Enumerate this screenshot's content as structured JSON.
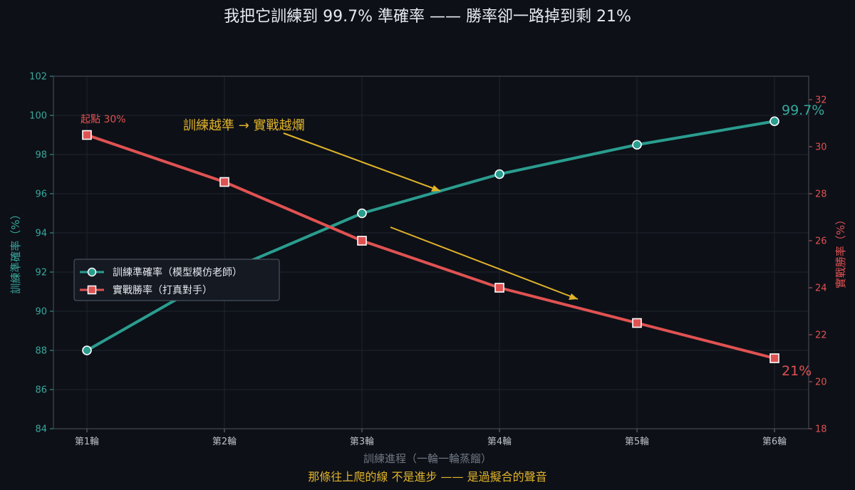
{
  "chart_data": {
    "type": "line",
    "title": "我把它訓練到 99.7% 準確率 —— 勝率卻一路掉到剩 21%",
    "xlabel": "訓練進程（一輪一輪蒸餾）",
    "ylabel": "訓練準確率（%）",
    "y2label": "實戰勝率（%）",
    "caption": "那條往上爬的線 不是進步 —— 是過擬合的聲音",
    "categories": [
      "第1輪",
      "第2輪",
      "第3輪",
      "第4輪",
      "第5輪",
      "第6輪"
    ],
    "ylim": [
      84,
      102
    ],
    "yticks": [
      "84",
      "86",
      "88",
      "90",
      "92",
      "94",
      "96",
      "98",
      "100",
      "102"
    ],
    "y2lim": [
      18,
      33
    ],
    "y2ticks": [
      "18",
      "20",
      "22",
      "24",
      "26",
      "28",
      "30",
      "32"
    ],
    "grid": true,
    "legend_position": "left-middle",
    "series": [
      {
        "name": "訓練準確率（模型模仿老師）",
        "axis": "left",
        "color": "#2a9d8f",
        "marker": "circle",
        "values": [
          88,
          92,
          95,
          97,
          98.5,
          99.7
        ]
      },
      {
        "name": "實戰勝率（打真對手）",
        "axis": "right",
        "color": "#e05252",
        "marker": "square",
        "values": [
          30.5,
          28.5,
          26,
          24,
          22.5,
          21
        ]
      }
    ],
    "annotations": {
      "main": "訓練越準 → 實戰越爛",
      "start": "起點 30%",
      "end_accuracy": "99.7%",
      "end_winrate": "21%"
    },
    "annotation_color": "#e0b32a"
  }
}
